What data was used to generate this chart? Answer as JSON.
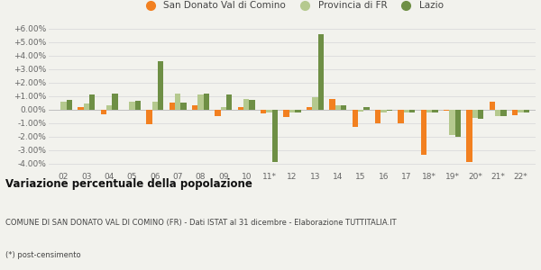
{
  "categories": [
    "02",
    "03",
    "04",
    "05",
    "06",
    "07",
    "08",
    "09",
    "10",
    "11*",
    "12",
    "13",
    "14",
    "15",
    "16",
    "17",
    "18*",
    "19*",
    "20*",
    "21*",
    "22*"
  ],
  "san_donato": [
    0.0,
    0.15,
    -0.35,
    -0.05,
    -1.1,
    0.5,
    0.3,
    -0.5,
    0.15,
    -0.3,
    -0.55,
    0.15,
    0.8,
    -1.3,
    -1.0,
    -1.0,
    -3.35,
    -0.1,
    -3.9,
    0.6,
    -0.4
  ],
  "provincia": [
    0.55,
    0.45,
    0.3,
    0.6,
    0.55,
    1.15,
    1.1,
    0.2,
    0.8,
    -0.2,
    -0.25,
    0.9,
    0.3,
    -0.15,
    -0.2,
    -0.25,
    -0.2,
    -1.9,
    -0.65,
    -0.5,
    -0.2
  ],
  "lazio": [
    0.7,
    1.1,
    1.2,
    0.65,
    3.55,
    0.5,
    1.15,
    1.1,
    0.7,
    -3.9,
    -0.2,
    5.6,
    0.3,
    0.2,
    -0.1,
    -0.2,
    -0.25,
    -2.05,
    -0.7,
    -0.5,
    -0.2
  ],
  "san_donato_color": "#f28020",
  "provincia_color": "#b5c98e",
  "lazio_color": "#6e8f45",
  "title": "Variazione percentuale della popolazione",
  "subtitle": "COMUNE DI SAN DONATO VAL DI COMINO (FR) - Dati ISTAT al 31 dicembre - Elaborazione TUTTITALIA.IT",
  "footnote": "(*) post-censimento",
  "ylim": [
    -4.5,
    6.5
  ],
  "yticks": [
    -4.0,
    -3.0,
    -2.0,
    -1.0,
    0.0,
    1.0,
    2.0,
    3.0,
    4.0,
    5.0,
    6.0
  ],
  "ytick_labels": [
    "-4.00%",
    "-3.00%",
    "-2.00%",
    "-1.00%",
    "0.00%",
    "+1.00%",
    "+2.00%",
    "+3.00%",
    "+4.00%",
    "+5.00%",
    "+6.00%"
  ],
  "bg_color": "#f2f2ed",
  "bar_width": 0.25,
  "legend_labels": [
    "San Donato Val di Comino",
    "Provincia di FR",
    "Lazio"
  ]
}
